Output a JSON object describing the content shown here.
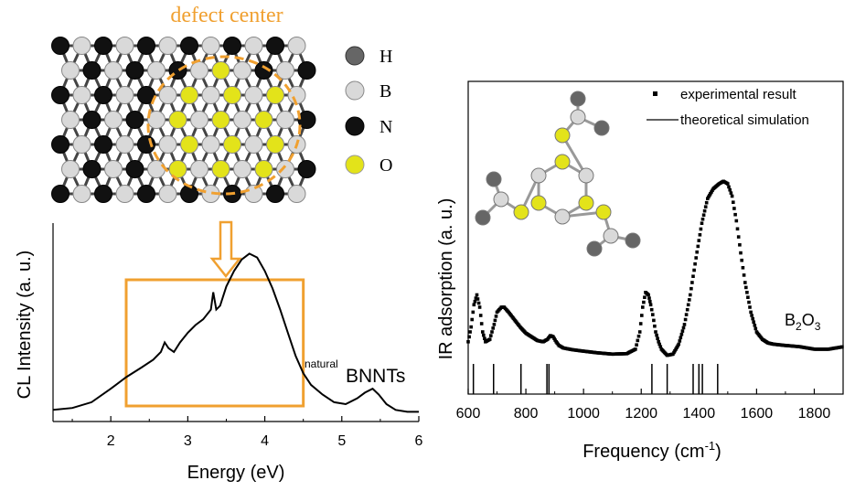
{
  "colors": {
    "accent": "#f0a030",
    "hydrogen": "#666666",
    "boron": "#d9d9d9",
    "nitrogen": "#111111",
    "oxygen": "#e3e31a"
  },
  "structure": {
    "title": "defect center",
    "legend": [
      {
        "symbol": "H",
        "color": "#666666"
      },
      {
        "symbol": "B",
        "color": "#d9d9d9"
      },
      {
        "symbol": "N",
        "color": "#111111"
      },
      {
        "symbol": "O",
        "color": "#e3e31a"
      }
    ]
  },
  "chart_data": [
    {
      "type": "line",
      "xlabel": "Energy (eV)",
      "ylabel": "CL Intensity (a. u.)",
      "xlim": [
        1.25,
        6
      ],
      "ylim": [
        0,
        1
      ],
      "xticks": [
        2,
        3,
        4,
        5,
        6
      ],
      "sample_label_super": "natural",
      "sample_label": "BNNTs",
      "highlight_range": [
        2.2,
        4.5
      ],
      "series": [
        {
          "x": [
            1.25,
            1.5,
            1.75,
            2.0,
            2.2,
            2.4,
            2.55,
            2.65,
            2.7,
            2.75,
            2.82,
            2.9,
            3.0,
            3.1,
            3.2,
            3.3,
            3.33,
            3.37,
            3.42,
            3.5,
            3.6,
            3.7,
            3.8,
            3.9,
            4.0,
            4.1,
            4.2,
            4.3,
            4.4,
            4.5,
            4.6,
            4.75,
            4.9,
            5.05,
            5.2,
            5.3,
            5.4,
            5.48,
            5.58,
            5.7,
            5.85,
            6.0
          ],
          "y": [
            0.06,
            0.07,
            0.1,
            0.17,
            0.23,
            0.28,
            0.32,
            0.36,
            0.41,
            0.38,
            0.36,
            0.41,
            0.46,
            0.5,
            0.53,
            0.58,
            0.67,
            0.58,
            0.6,
            0.7,
            0.78,
            0.84,
            0.87,
            0.85,
            0.78,
            0.69,
            0.58,
            0.46,
            0.34,
            0.25,
            0.19,
            0.14,
            0.1,
            0.09,
            0.12,
            0.15,
            0.17,
            0.14,
            0.09,
            0.06,
            0.05,
            0.05
          ]
        }
      ]
    },
    {
      "type": "line",
      "xlabel": "Frequency (cm",
      "xlabel_sup": "-1",
      "xlabel_end": ")",
      "ylabel": "IR adsorption (a. u.)",
      "xlim": [
        600,
        1900
      ],
      "ylim": [
        0,
        1
      ],
      "xticks": [
        600,
        800,
        1000,
        1200,
        1400,
        1600,
        1800
      ],
      "compound": "B",
      "compound_sub1": "2",
      "compound_mid": "O",
      "compound_sub2": "3",
      "legend": [
        {
          "name": "experimental result",
          "marker": "square"
        },
        {
          "name": "theoretical simulation",
          "marker": "line"
        }
      ],
      "series": [
        {
          "name": "experimental result",
          "x": [
            600,
            610,
            620,
            630,
            640,
            650,
            660,
            675,
            690,
            700,
            715,
            725,
            740,
            760,
            780,
            800,
            820,
            840,
            860,
            875,
            885,
            895,
            905,
            915,
            930,
            960,
            1000,
            1050,
            1100,
            1150,
            1180,
            1195,
            1205,
            1215,
            1225,
            1233,
            1240,
            1250,
            1260,
            1270,
            1290,
            1310,
            1330,
            1350,
            1370,
            1390,
            1410,
            1430,
            1450,
            1470,
            1485,
            1500,
            1515,
            1530,
            1545,
            1560,
            1580,
            1600,
            1620,
            1640,
            1660,
            1700,
            1750,
            1800,
            1850,
            1900
          ],
          "y": [
            0.06,
            0.12,
            0.21,
            0.25,
            0.2,
            0.1,
            0.06,
            0.07,
            0.13,
            0.18,
            0.2,
            0.2,
            0.18,
            0.15,
            0.12,
            0.095,
            0.08,
            0.065,
            0.06,
            0.07,
            0.085,
            0.08,
            0.06,
            0.045,
            0.035,
            0.028,
            0.022,
            0.015,
            0.01,
            0.012,
            0.03,
            0.1,
            0.2,
            0.26,
            0.25,
            0.21,
            0.17,
            0.1,
            0.06,
            0.03,
            0.005,
            0.01,
            0.05,
            0.13,
            0.25,
            0.4,
            0.54,
            0.64,
            0.68,
            0.7,
            0.71,
            0.7,
            0.65,
            0.55,
            0.42,
            0.3,
            0.18,
            0.1,
            0.07,
            0.055,
            0.05,
            0.045,
            0.04,
            0.03,
            0.03,
            0.04
          ]
        },
        {
          "name": "theoretical simulation",
          "sticks": [
            618,
            688,
            783,
            873,
            880,
            1237,
            1290,
            1380,
            1400,
            1412,
            1465
          ]
        }
      ]
    }
  ]
}
